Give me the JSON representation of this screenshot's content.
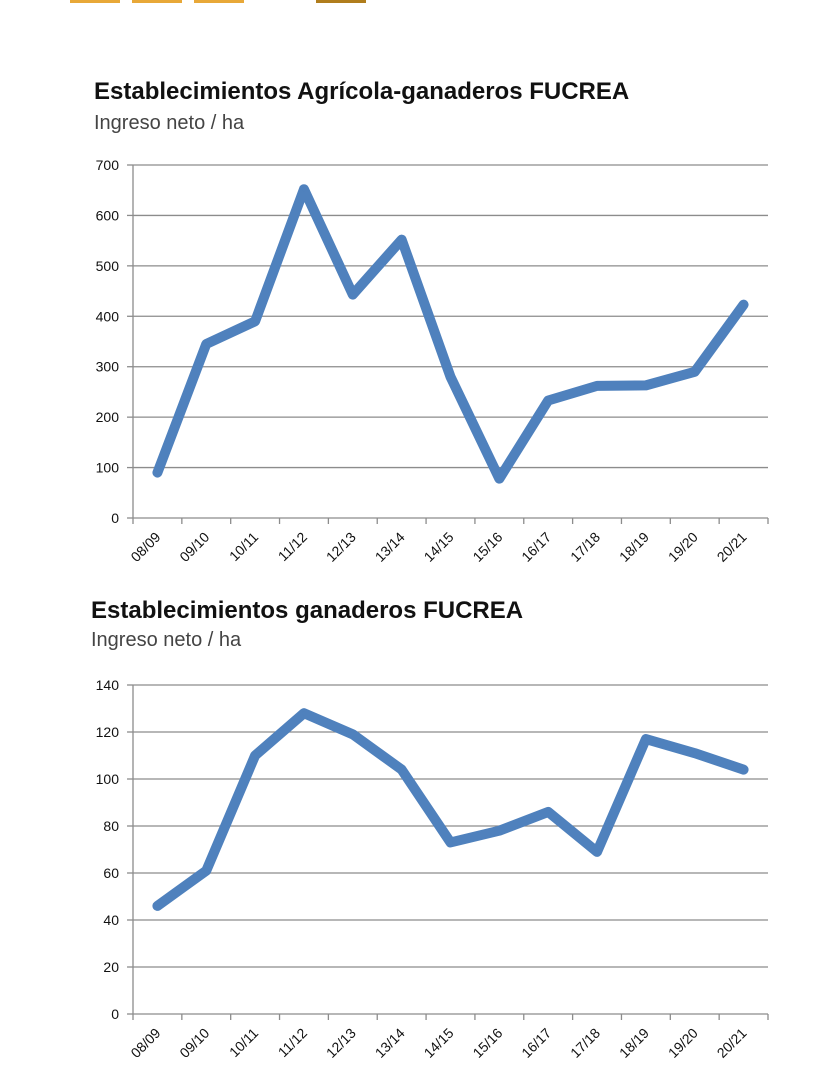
{
  "header": {
    "decoration_colors": [
      "#e8a838",
      "#e8a838",
      "#e8a838",
      "#b07d1c"
    ]
  },
  "chart_data": [
    {
      "type": "line",
      "title": "Establecimientos Agrícola-ganaderos FUCREA",
      "subtitle": "Ingreso neto / ha",
      "categories": [
        "08/09",
        "09/10",
        "10/11",
        "11/12",
        "12/13",
        "13/14",
        "14/15",
        "15/16",
        "16/17",
        "17/18",
        "18/19",
        "19/20",
        "20/21"
      ],
      "series": [
        {
          "values": [
            90,
            345,
            390,
            652,
            443,
            552,
            280,
            78,
            233,
            262,
            263,
            290,
            423
          ],
          "color": "#4f81bd"
        }
      ],
      "yticks": [
        "0",
        "100",
        "200",
        "300",
        "400",
        "500",
        "600",
        "700"
      ],
      "ylim": [
        0,
        700
      ],
      "grid": true,
      "legend": "none"
    },
    {
      "type": "line",
      "title": "Establecimientos ganaderos FUCREA",
      "subtitle": "Ingreso neto / ha",
      "categories": [
        "08/09",
        "09/10",
        "10/11",
        "11/12",
        "12/13",
        "13/14",
        "14/15",
        "15/16",
        "16/17",
        "17/18",
        "18/19",
        "19/20",
        "20/21"
      ],
      "series": [
        {
          "values": [
            46,
            61,
            110,
            128,
            119,
            104,
            73,
            78,
            86,
            69,
            117,
            111,
            104
          ],
          "color": "#4f81bd"
        }
      ],
      "yticks": [
        "0",
        "20",
        "40",
        "60",
        "80",
        "100",
        "120",
        "140"
      ],
      "ylim": [
        0,
        140
      ],
      "grid": true,
      "legend": "none"
    }
  ]
}
